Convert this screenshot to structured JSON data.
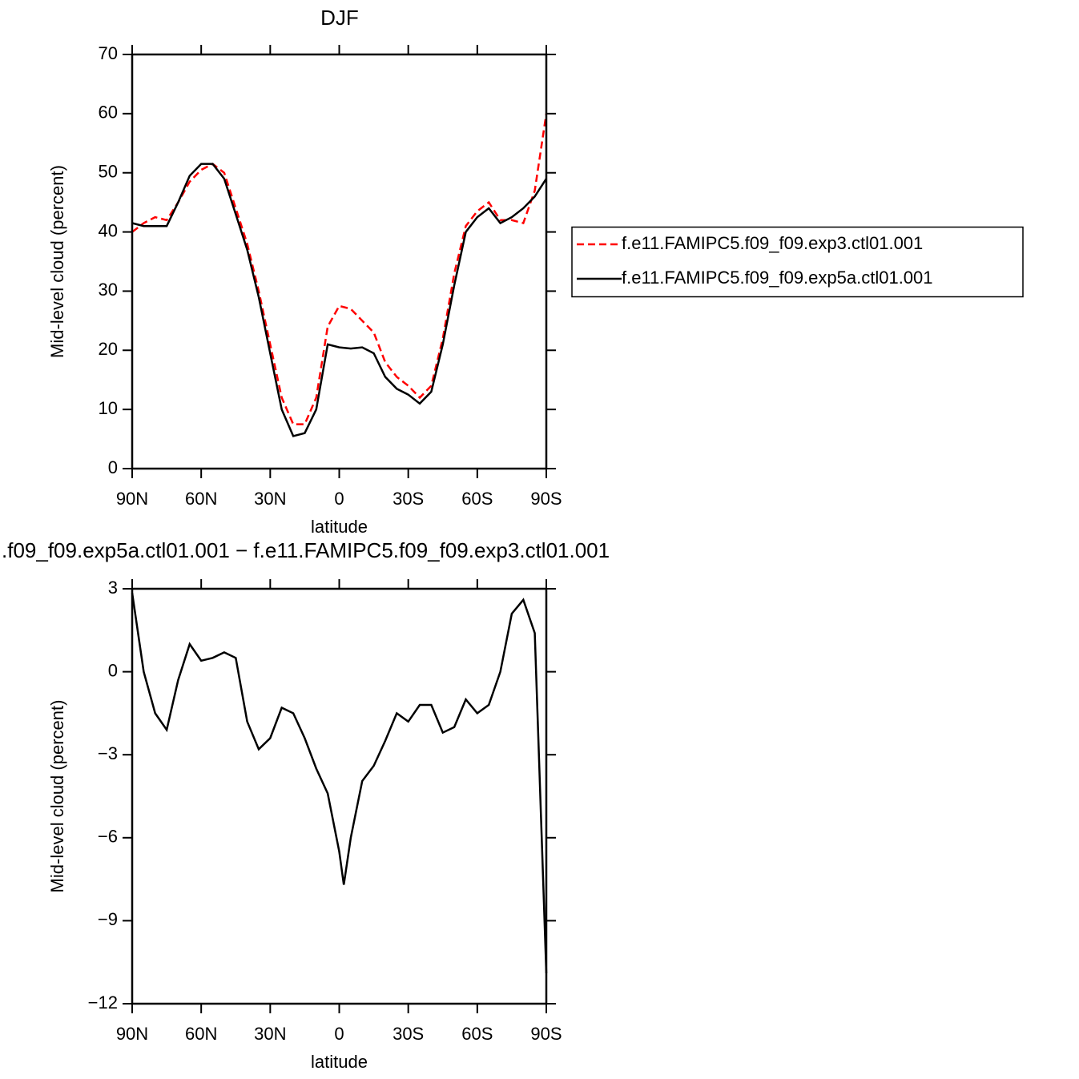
{
  "chart_data": [
    {
      "type": "line",
      "title": "DJF",
      "x_label": "latitude",
      "y_label": "Mid-level cloud (percent)",
      "x": [
        90,
        85,
        80,
        75,
        70,
        65,
        60,
        55,
        50,
        45,
        40,
        35,
        30,
        25,
        20,
        15,
        10,
        5,
        0,
        -5,
        -10,
        -15,
        -20,
        -25,
        -30,
        -35,
        -40,
        -45,
        -50,
        -55,
        -60,
        -65,
        -70,
        -75,
        -80,
        -85,
        -90
      ],
      "xlim": [
        90,
        -90
      ],
      "xticks": [
        {
          "value": 90,
          "label": "90N"
        },
        {
          "value": 60,
          "label": "60N"
        },
        {
          "value": 30,
          "label": "30N"
        },
        0,
        {
          "value": -30,
          "label": "30S"
        },
        {
          "value": -60,
          "label": "60S"
        },
        {
          "value": -90,
          "label": "90S"
        }
      ],
      "ylim": [
        0,
        70
      ],
      "yticks": [
        0,
        10,
        20,
        30,
        40,
        50,
        60,
        70
      ],
      "legend": "right",
      "series": [
        {
          "name": "f.e11.FAMIPC5.f09_f09.exp3.ctl01.001",
          "color": "#ff0000",
          "line_style": "dashed",
          "values": [
            40,
            41.5,
            42.5,
            42,
            45,
            48.5,
            50.5,
            51.5,
            50,
            44,
            38,
            30,
            21,
            12,
            7.5,
            7.5,
            12,
            24,
            27.5,
            27,
            25,
            23,
            18,
            15.5,
            14,
            12,
            14,
            22,
            33,
            41,
            43.5,
            45,
            42,
            42,
            41.5,
            47,
            60
          ]
        },
        {
          "name": "f.e11.FAMIPC5.f09_f09.exp5a.ctl01.001",
          "color": "#000000",
          "line_style": "solid",
          "values": [
            41.5,
            41,
            41,
            41,
            45,
            49.5,
            51.5,
            51.5,
            49,
            43,
            37,
            29,
            19.5,
            10,
            5.5,
            6,
            10,
            21,
            20.5,
            20.3,
            20.5,
            19.5,
            15.5,
            13.5,
            12.5,
            11,
            13,
            21,
            31,
            40,
            42.5,
            44,
            41.5,
            42.5,
            44,
            46,
            49
          ]
        }
      ]
    },
    {
      "type": "line",
      "title": ".f09_f09.exp5a.ctl01.001  −  f.e11.FAMIPC5.f09_f09.exp3.ctl01.001",
      "x_label": "latitude",
      "y_label": "Mid-level cloud (percent)",
      "x": [
        90,
        85,
        80,
        75,
        70,
        65,
        60,
        55,
        50,
        45,
        40,
        35,
        30,
        25,
        20,
        15,
        10,
        5,
        0,
        -2,
        -5,
        -10,
        -15,
        -20,
        -25,
        -30,
        -35,
        -40,
        -45,
        -50,
        -55,
        -60,
        -65,
        -70,
        -75,
        -80,
        -85,
        -90
      ],
      "xlim": [
        90,
        -90
      ],
      "xticks": [
        {
          "value": 90,
          "label": "90N"
        },
        {
          "value": 60,
          "label": "60N"
        },
        {
          "value": 30,
          "label": "30N"
        },
        0,
        {
          "value": -30,
          "label": "30S"
        },
        {
          "value": -60,
          "label": "60S"
        },
        {
          "value": -90,
          "label": "90S"
        }
      ],
      "ylim": [
        -12,
        3
      ],
      "yticks": [
        {
          "value": -12,
          "label": "−12"
        },
        {
          "value": -9,
          "label": "−9"
        },
        {
          "value": -6,
          "label": "−6"
        },
        {
          "value": -3,
          "label": "−3"
        },
        0,
        3
      ],
      "series": [
        {
          "color": "#000000",
          "line_style": "solid",
          "values": [
            2.85,
            0,
            -1.5,
            -2.1,
            -0.3,
            1,
            0.4,
            0.5,
            0.7,
            0.5,
            -1.8,
            -2.8,
            -2.4,
            -1.3,
            -1.5,
            -2.4,
            -3.5,
            -4.4,
            -6.5,
            -7.7,
            -6.0,
            -3.95,
            -3.4,
            -2.5,
            -1.5,
            -1.8,
            -1.2,
            -1.2,
            -2.2,
            -2,
            -1,
            -1.5,
            -1.2,
            0,
            2.1,
            2.6,
            1.4,
            -10.9
          ]
        }
      ]
    }
  ]
}
